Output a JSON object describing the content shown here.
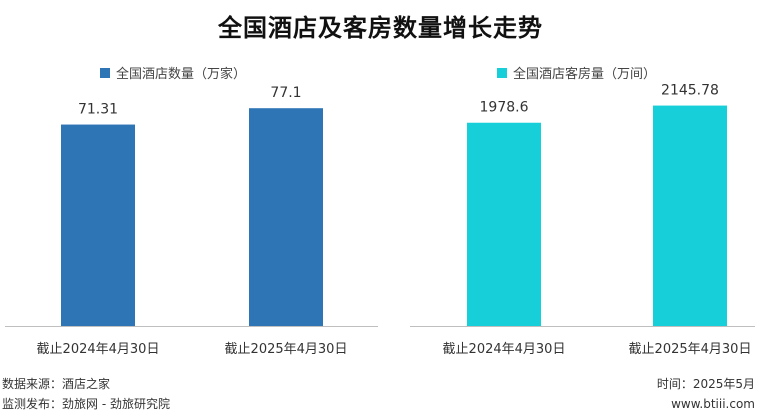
{
  "title": "全国酒店及客房数量增长走势",
  "chart_data": [
    {
      "type": "bar",
      "legend": "全国酒店数量（万家）",
      "legend_position": "top",
      "categories": [
        "截止2024年4月30日",
        "截止2025年4月30日"
      ],
      "values": [
        71.31,
        77.1
      ],
      "value_labels": [
        "71.31",
        "77.1"
      ],
      "color": "#2e75b6",
      "ylim": [
        0,
        80
      ],
      "grid": false
    },
    {
      "type": "bar",
      "legend": "全国酒店客房量（万间）",
      "legend_position": "top",
      "categories": [
        "截止2024年4月30日",
        "截止2025年4月30日"
      ],
      "values": [
        1978.6,
        2145.78
      ],
      "value_labels": [
        "1978.6",
        "2145.78"
      ],
      "color": "#17cfd9",
      "ylim": [
        0,
        2200
      ],
      "grid": false
    }
  ],
  "footer": {
    "source": "数据来源：酒店之家",
    "publisher": "监测发布：劲旅网 - 劲旅研究院",
    "time": "时间：2025年5月",
    "website": "www.btiii.com"
  }
}
